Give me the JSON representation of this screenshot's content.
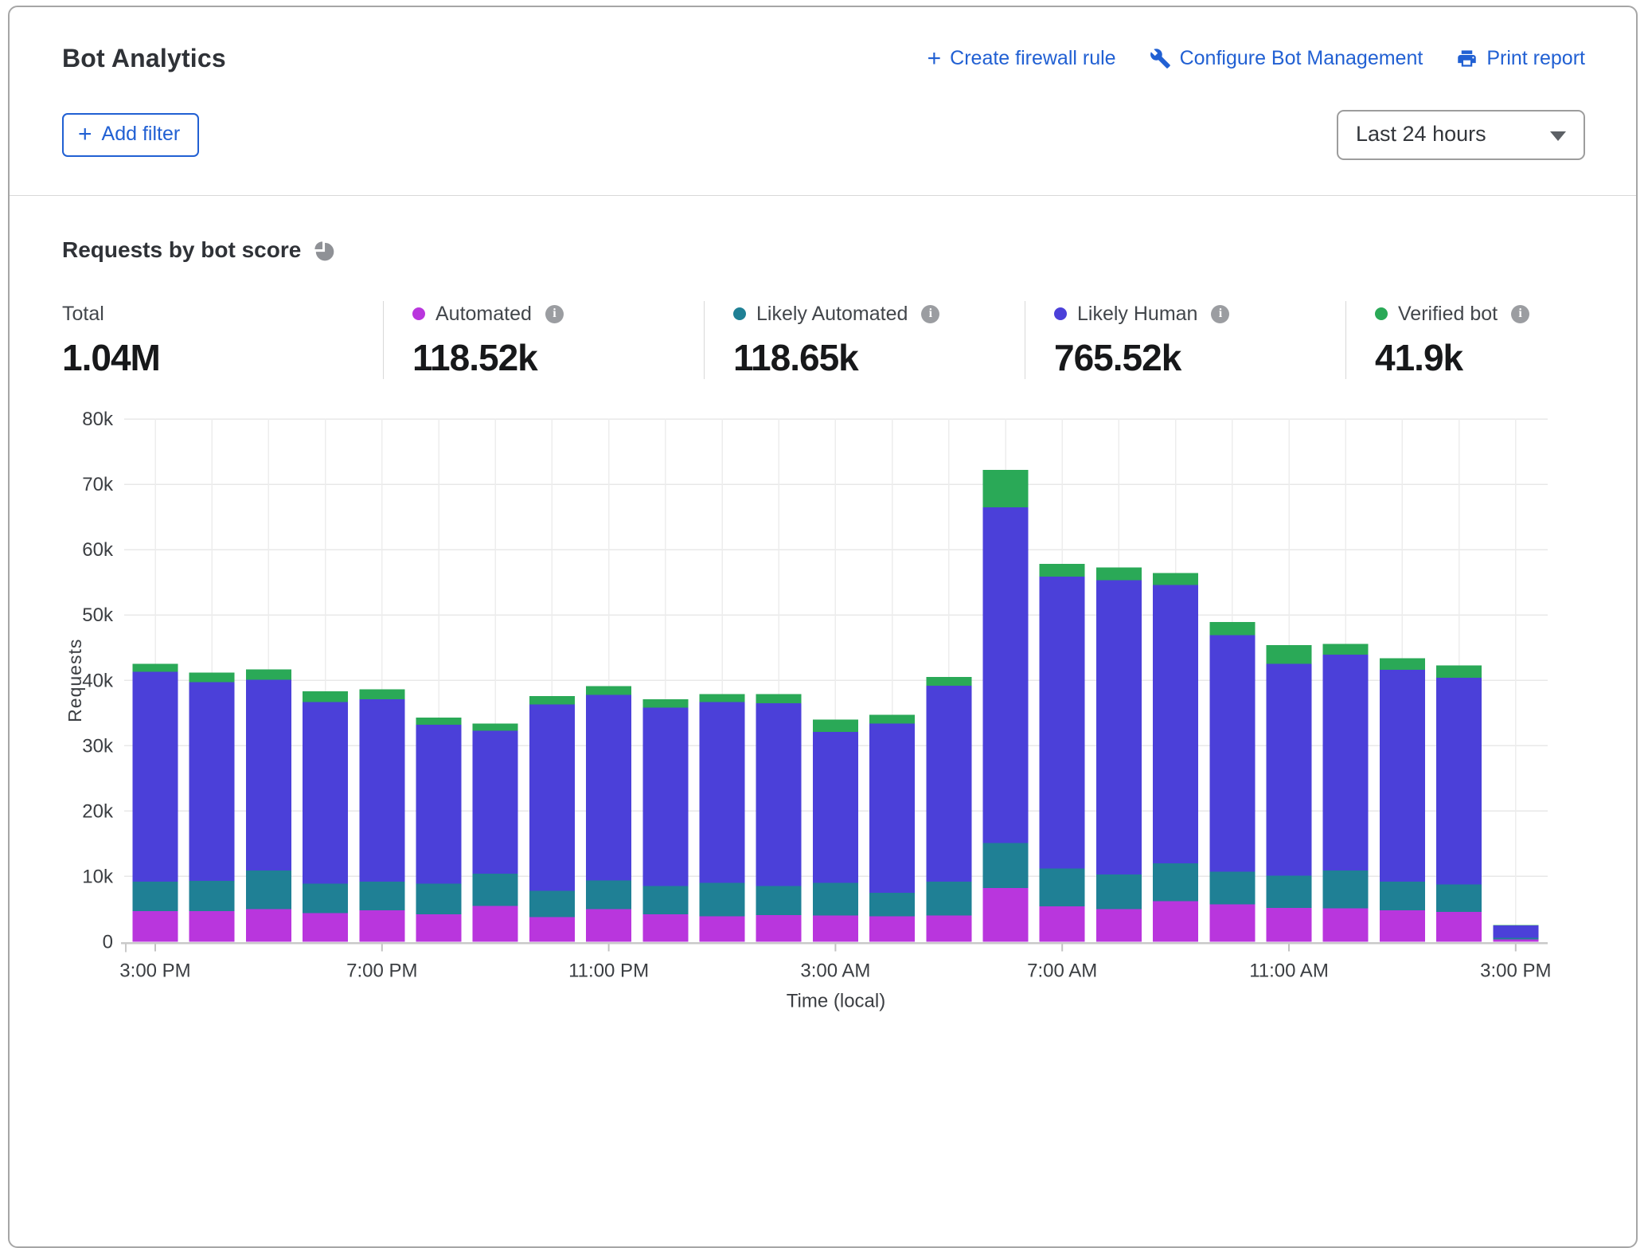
{
  "colors": {
    "accent_blue": "#2160d3",
    "automated": "#b936dd",
    "likely_automated": "#1f8095",
    "likely_human": "#4b40d9",
    "verified_bot": "#2aa957",
    "grid": "#e8e8e8",
    "axis": "#c9c9c9",
    "text_axis": "#3b3e42"
  },
  "header": {
    "title": "Bot Analytics",
    "links": [
      {
        "label": "Create firewall rule",
        "icon": "plus-icon"
      },
      {
        "label": "Configure Bot Management",
        "icon": "wrench-icon"
      },
      {
        "label": "Print report",
        "icon": "printer-icon"
      }
    ]
  },
  "filters": {
    "add_filter_label": "Add filter",
    "time_range_value": "Last 24 hours"
  },
  "section": {
    "title": "Requests by bot score",
    "icon": "pie-chart-icon"
  },
  "stats": {
    "total": {
      "label": "Total",
      "value": "1.04M"
    },
    "items": [
      {
        "label": "Automated",
        "value": "118.52k",
        "color": "#b936dd"
      },
      {
        "label": "Likely Automated",
        "value": "118.65k",
        "color": "#1f8095"
      },
      {
        "label": "Likely Human",
        "value": "765.52k",
        "color": "#4b40d9"
      },
      {
        "label": "Verified bot",
        "value": "41.9k",
        "color": "#2aa957"
      }
    ]
  },
  "chart_data": {
    "type": "bar",
    "stacked": true,
    "title": "Requests by bot score",
    "xlabel": "Time (local)",
    "ylabel": "Requests",
    "ylim": [
      0,
      80000
    ],
    "grid": true,
    "legend_position": "top-stats-row",
    "y_tick_labels": [
      "0",
      "10k",
      "20k",
      "30k",
      "40k",
      "50k",
      "60k",
      "70k",
      "80k"
    ],
    "x_tick_labels": [
      "3:00 PM",
      "7:00 PM",
      "11:00 PM",
      "3:00 AM",
      "7:00 AM",
      "11:00 AM",
      "3:00 PM"
    ],
    "x_tick_bar_indices": [
      0,
      4,
      8,
      12,
      16,
      20,
      24
    ],
    "bar_count": 25,
    "bar_interval": "1 hour",
    "values_unit": "thousands of requests",
    "series": [
      {
        "name": "Automated",
        "color": "#b936dd",
        "values": [
          4.7,
          4.7,
          5.0,
          4.4,
          4.8,
          4.2,
          5.5,
          3.8,
          5.0,
          4.2,
          3.9,
          4.1,
          4.0,
          3.9,
          4.0,
          8.2,
          5.4,
          5.0,
          6.2,
          5.7,
          5.2,
          5.1,
          4.8,
          4.6,
          0.35
        ]
      },
      {
        "name": "Likely Automated",
        "color": "#1f8095",
        "values": [
          4.5,
          4.6,
          5.9,
          4.5,
          4.4,
          4.7,
          4.9,
          4.0,
          4.4,
          4.3,
          5.1,
          4.4,
          5.0,
          3.6,
          5.2,
          6.9,
          5.8,
          5.3,
          5.8,
          5.0,
          4.9,
          5.8,
          4.4,
          4.2,
          0.25
        ]
      },
      {
        "name": "Likely Human",
        "color": "#4b40d9",
        "values": [
          32.1,
          30.4,
          29.2,
          27.8,
          27.9,
          24.3,
          21.9,
          28.5,
          28.4,
          27.3,
          27.7,
          28.0,
          23.1,
          25.9,
          30.0,
          51.4,
          44.7,
          45.0,
          42.6,
          36.2,
          32.4,
          33.0,
          32.4,
          31.6,
          1.9
        ]
      },
      {
        "name": "Verified bot",
        "color": "#2aa957",
        "values": [
          1.2,
          1.5,
          1.6,
          1.6,
          1.5,
          1.1,
          1.1,
          1.3,
          1.3,
          1.3,
          1.2,
          1.4,
          1.9,
          1.3,
          1.3,
          5.7,
          1.9,
          2.0,
          1.8,
          2.0,
          2.9,
          1.7,
          1.8,
          1.9,
          0.05
        ]
      }
    ]
  }
}
